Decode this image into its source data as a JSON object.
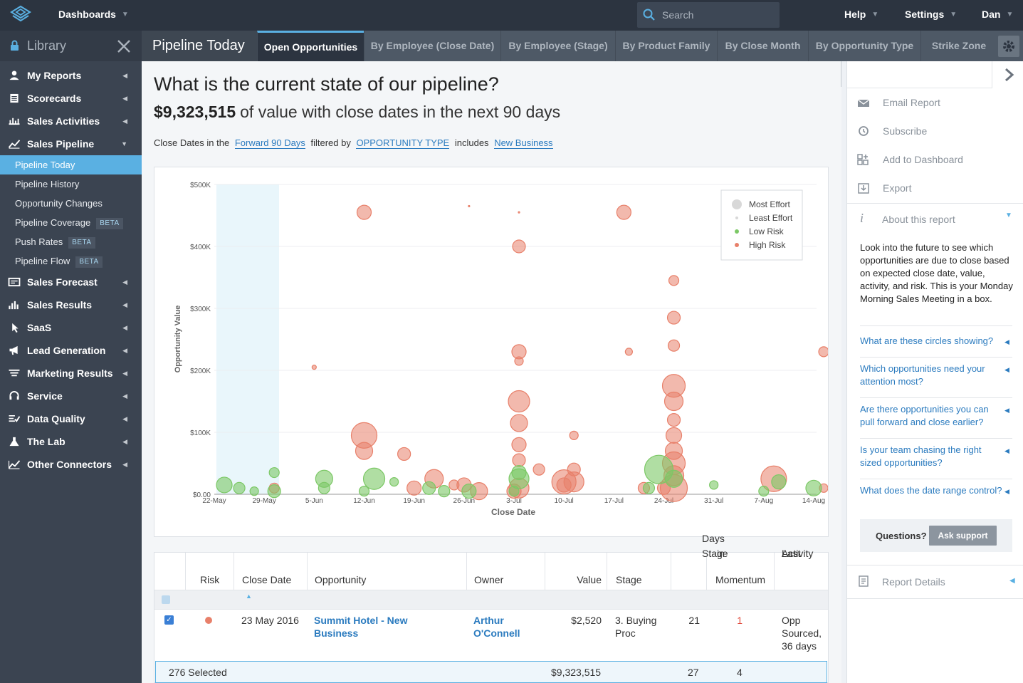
{
  "topbar": {
    "app_menu": "Dashboards",
    "search_placeholder": "Search",
    "help": "Help",
    "settings": "Settings",
    "user": "Dan"
  },
  "sidebar": {
    "library_label": "Library",
    "items": [
      {
        "label": "My Reports",
        "icon": "user-icon"
      },
      {
        "label": "Scorecards",
        "icon": "scorecard-icon"
      },
      {
        "label": "Sales Activities",
        "icon": "activities-icon"
      },
      {
        "label": "Sales Pipeline",
        "icon": "pipeline-icon"
      }
    ],
    "subitems": [
      {
        "label": "Pipeline Today",
        "beta": ""
      },
      {
        "label": "Pipeline History",
        "beta": ""
      },
      {
        "label": "Opportunity Changes",
        "beta": ""
      },
      {
        "label": "Pipeline Coverage",
        "beta": "BETA"
      },
      {
        "label": "Push Rates",
        "beta": "BETA"
      },
      {
        "label": "Pipeline Flow",
        "beta": "BETA"
      }
    ],
    "items2": [
      {
        "label": "Sales Forecast",
        "icon": "forecast-icon"
      },
      {
        "label": "Sales Results",
        "icon": "results-icon"
      },
      {
        "label": "SaaS",
        "icon": "saas-icon"
      },
      {
        "label": "Lead Generation",
        "icon": "megaphone-icon"
      },
      {
        "label": "Marketing Results",
        "icon": "marketing-icon"
      },
      {
        "label": "Service",
        "icon": "headset-icon"
      },
      {
        "label": "Data Quality",
        "icon": "data-quality-icon"
      },
      {
        "label": "The Lab",
        "icon": "flask-icon"
      },
      {
        "label": "Other Connectors",
        "icon": "connectors-icon"
      }
    ]
  },
  "tabs": {
    "page_title": "Pipeline Today",
    "items": [
      "Open Opportunities",
      "By Employee (Close Date)",
      "By Employee (Stage)",
      "By Product Family",
      "By Close Month",
      "By Opportunity Type",
      "Strike Zone"
    ]
  },
  "main": {
    "question": "What is the current state of our pipeline?",
    "value": "$9,323,515",
    "value_suffix": "of value with close dates in the next 90 days",
    "filter_prefix": "Close Dates in the",
    "filter_range": "Forward 90 Days",
    "filter_by": "filtered by",
    "filter_field": "OPPORTUNITY TYPE",
    "filter_op": "includes",
    "filter_value": "New Business"
  },
  "chart_data": {
    "type": "scatter",
    "title": "",
    "xlabel": "Close Date",
    "ylabel": "Opportunity Value",
    "ylim": [
      0,
      500000
    ],
    "y_ticks": [
      "$0.00",
      "$100K",
      "$200K",
      "$300K",
      "$400K",
      "$500K"
    ],
    "x_ticks": [
      "22-May",
      "29-May",
      "5-Jun",
      "12-Jun",
      "19-Jun",
      "26-Jun",
      "3-Jul",
      "10-Jul",
      "17-Jul",
      "24-Jul",
      "31-Jul",
      "7-Aug",
      "14-Aug"
    ],
    "legend": [
      "Most Effort",
      "Least Effort",
      "Low Risk",
      "High Risk"
    ],
    "legend_position": "top-right",
    "colors": {
      "high": "#e8806a",
      "low": "#7cc866",
      "effort": "#cccccc"
    },
    "series": [
      {
        "name": "High Risk",
        "points": [
          [
            3,
            455000,
            10
          ],
          [
            2,
            205000,
            3
          ],
          [
            3,
            95000,
            18
          ],
          [
            3,
            70000,
            12
          ],
          [
            3.8,
            65000,
            9
          ],
          [
            4.4,
            25000,
            13
          ],
          [
            5,
            15000,
            10
          ],
          [
            5.3,
            5000,
            12
          ],
          [
            6.1,
            455000,
            1
          ],
          [
            5.1,
            465000,
            1
          ],
          [
            6.1,
            400000,
            9
          ],
          [
            6.1,
            230000,
            10
          ],
          [
            6.1,
            215000,
            6
          ],
          [
            6.1,
            150000,
            15
          ],
          [
            6.1,
            115000,
            12
          ],
          [
            6.1,
            80000,
            10
          ],
          [
            6.1,
            55000,
            9
          ],
          [
            6.1,
            10000,
            14
          ],
          [
            6.5,
            40000,
            8
          ],
          [
            7.0,
            15000,
            10
          ],
          [
            8.2,
            455000,
            10
          ],
          [
            8.3,
            230000,
            5
          ],
          [
            7.2,
            95000,
            6
          ],
          [
            7.2,
            40000,
            9
          ],
          [
            7.2,
            20000,
            14
          ],
          [
            7.0,
            20000,
            17
          ],
          [
            9.2,
            345000,
            7
          ],
          [
            9.2,
            285000,
            9
          ],
          [
            9.2,
            240000,
            8
          ],
          [
            9.2,
            175000,
            16
          ],
          [
            9.2,
            150000,
            13
          ],
          [
            9.2,
            120000,
            9
          ],
          [
            9.2,
            95000,
            11
          ],
          [
            9.2,
            70000,
            12
          ],
          [
            9.2,
            50000,
            16
          ],
          [
            9.2,
            30000,
            14
          ],
          [
            9.2,
            10000,
            19
          ],
          [
            11.2,
            25000,
            18
          ],
          [
            12.2,
            230000,
            7
          ],
          [
            12.2,
            10000,
            6
          ],
          [
            1.2,
            10000,
            7
          ],
          [
            4.0,
            10000,
            10
          ],
          [
            4.8,
            15000,
            7
          ],
          [
            6.0,
            5000,
            10
          ],
          [
            8.6,
            10000,
            8
          ],
          [
            9.0,
            10000,
            9
          ]
        ]
      },
      {
        "name": "Low Risk",
        "points": [
          [
            0.2,
            15000,
            11
          ],
          [
            1.2,
            35000,
            7
          ],
          [
            1.2,
            5000,
            9
          ],
          [
            2.2,
            25000,
            12
          ],
          [
            2.2,
            10000,
            8
          ],
          [
            3.2,
            25000,
            15
          ],
          [
            3.6,
            20000,
            6
          ],
          [
            4.3,
            10000,
            9
          ],
          [
            5.1,
            5000,
            10
          ],
          [
            6.1,
            35000,
            10
          ],
          [
            6.1,
            25000,
            14
          ],
          [
            6.0,
            5000,
            7
          ],
          [
            8.9,
            40000,
            20
          ],
          [
            8.7,
            10000,
            8
          ],
          [
            9.2,
            25000,
            12
          ],
          [
            10.0,
            15000,
            6
          ],
          [
            11.0,
            5000,
            7
          ],
          [
            11.3,
            20000,
            10
          ],
          [
            12.0,
            10000,
            11
          ],
          [
            0.5,
            10000,
            8
          ],
          [
            0.8,
            5000,
            6
          ],
          [
            3.0,
            5000,
            7
          ],
          [
            4.6,
            5000,
            8
          ]
        ]
      }
    ]
  },
  "grid": {
    "headers": {
      "risk": "Risk",
      "close_date": "Close Date",
      "opportunity": "Opportunity",
      "owner": "Owner",
      "value": "Value",
      "stage": "Stage",
      "days_in_stage_1": "Days in",
      "days_in_stage_2": "Stage",
      "momentum": "Momentum",
      "last_activity_1": "Last",
      "last_activity_2": "Activity"
    },
    "row": {
      "close_date": "23 May 2016",
      "opportunity": "Summit Hotel - New Business",
      "owner": "Arthur O'Connell",
      "value": "$2,520",
      "stage": "3. Buying Proc",
      "days": "21",
      "momentum": "1",
      "last_activity": "Opp Sourced, 36 days ago"
    },
    "summary": {
      "selected": "276 Selected",
      "value": "$9,323,515",
      "days": "27",
      "momentum": "4"
    }
  },
  "rpanel": {
    "actions": [
      "Email Report",
      "Subscribe",
      "Add to Dashboard",
      "Export"
    ],
    "about_title": "About this report",
    "about_text": "Look into the future to see which opportunities are due to close based on expected close date, value, activity, and risk. This is your Monday Morning Sales Meeting in a box.",
    "questions": [
      "What are these circles showing?",
      "Which opportunities need your attention most?",
      "Are there opportunities you can pull forward and close earlier?",
      "Is your team chasing the right sized opportunities?",
      "What does the date range control?"
    ],
    "questions_label": "Questions?",
    "ask_support": "Ask support",
    "report_details": "Report Details"
  }
}
